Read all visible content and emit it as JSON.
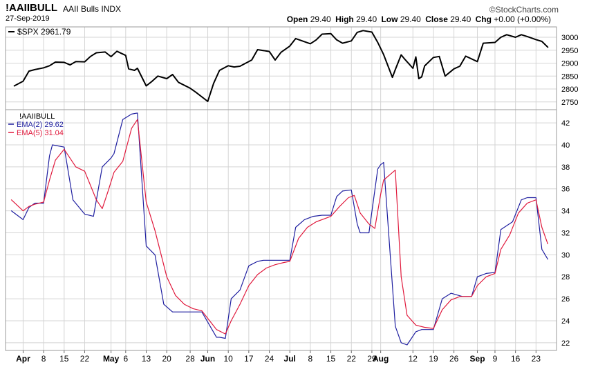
{
  "header": {
    "symbol": "!AAIIBULL",
    "name": "AAII Bulls INDX",
    "date": "27-Sep-2019",
    "brand": "StockCharts.com",
    "quote": [
      {
        "label": "Open",
        "value": "29.40"
      },
      {
        "label": "High",
        "value": "29.40"
      },
      {
        "label": "Low",
        "value": "29.40"
      },
      {
        "label": "Close",
        "value": "29.40"
      },
      {
        "label": "Chg",
        "value": "+0.00 (+0.00%)"
      }
    ]
  },
  "colors": {
    "spx": "#000000",
    "ema2": "#1f1fa0",
    "ema5": "#e0193c",
    "grid": "#d4d4d4",
    "border": "#9a9a9a"
  },
  "chart_data": [
    {
      "type": "line",
      "panel": "upper",
      "legend": [
        {
          "label": "$SPX",
          "value": "2961.79"
        }
      ],
      "ylim": [
        2720,
        3040
      ],
      "yticks": [
        2750,
        2800,
        2850,
        2900,
        2950,
        3000
      ],
      "grid": true,
      "series": [
        {
          "name": "$SPX",
          "x": [
            "2019-03-29",
            "2019-04-01",
            "2019-04-03",
            "2019-04-05",
            "2019-04-08",
            "2019-04-10",
            "2019-04-12",
            "2019-04-15",
            "2019-04-17",
            "2019-04-19",
            "2019-04-22",
            "2019-04-24",
            "2019-04-26",
            "2019-04-29",
            "2019-05-01",
            "2019-05-03",
            "2019-05-06",
            "2019-05-07",
            "2019-05-09",
            "2019-05-10",
            "2019-05-13",
            "2019-05-15",
            "2019-05-17",
            "2019-05-20",
            "2019-05-22",
            "2019-05-24",
            "2019-05-28",
            "2019-05-30",
            "2019-06-03",
            "2019-06-05",
            "2019-06-07",
            "2019-06-10",
            "2019-06-12",
            "2019-06-14",
            "2019-06-18",
            "2019-06-20",
            "2019-06-24",
            "2019-06-26",
            "2019-06-28",
            "2019-07-01",
            "2019-07-03",
            "2019-07-08",
            "2019-07-10",
            "2019-07-12",
            "2019-07-15",
            "2019-07-17",
            "2019-07-19",
            "2019-07-22",
            "2019-07-24",
            "2019-07-26",
            "2019-07-29",
            "2019-07-31",
            "2019-08-02",
            "2019-08-05",
            "2019-08-06",
            "2019-08-08",
            "2019-08-09",
            "2019-08-12",
            "2019-08-13",
            "2019-08-14",
            "2019-08-15",
            "2019-08-16",
            "2019-08-19",
            "2019-08-21",
            "2019-08-23",
            "2019-08-26",
            "2019-08-28",
            "2019-08-30",
            "2019-09-03",
            "2019-09-05",
            "2019-09-09",
            "2019-09-11",
            "2019-09-13",
            "2019-09-16",
            "2019-09-18",
            "2019-09-20",
            "2019-09-23",
            "2019-09-25",
            "2019-09-27"
          ],
          "values": [
            2812,
            2830,
            2869,
            2875,
            2882,
            2890,
            2904,
            2903,
            2893,
            2906,
            2905,
            2926,
            2940,
            2943,
            2925,
            2946,
            2930,
            2878,
            2872,
            2880,
            2812,
            2830,
            2850,
            2840,
            2856,
            2826,
            2803,
            2787,
            2752,
            2822,
            2872,
            2890,
            2885,
            2888,
            2912,
            2952,
            2945,
            2912,
            2942,
            2966,
            2995,
            2975,
            2990,
            3012,
            3014,
            2990,
            2977,
            2986,
            3019,
            3026,
            3020,
            2980,
            2933,
            2845,
            2875,
            2932,
            2918,
            2880,
            2924,
            2840,
            2847,
            2889,
            2922,
            2926,
            2850,
            2878,
            2888,
            2927,
            2906,
            2977,
            2980,
            3000,
            3010,
            3000,
            3010,
            3003,
            2991,
            2984,
            2962
          ]
        }
      ]
    },
    {
      "type": "line",
      "panel": "lower",
      "title": "!AAIIBULL",
      "legend": [
        {
          "label": "EMA(2)",
          "value": "29.62"
        },
        {
          "label": "EMA(5)",
          "value": "31.04"
        }
      ],
      "ylim": [
        21.3,
        43.2
      ],
      "yticks": [
        22,
        24,
        26,
        28,
        30,
        32,
        34,
        36,
        38,
        40,
        42
      ],
      "grid": true,
      "series": [
        {
          "name": "EMA(2)",
          "x": [
            "2019-03-28",
            "2019-04-01",
            "2019-04-03",
            "2019-04-05",
            "2019-04-08",
            "2019-04-10",
            "2019-04-11",
            "2019-04-15",
            "2019-04-18",
            "2019-04-22",
            "2019-04-25",
            "2019-04-28",
            "2019-05-01",
            "2019-05-02",
            "2019-05-05",
            "2019-05-08",
            "2019-05-10",
            "2019-05-13",
            "2019-05-16",
            "2019-05-19",
            "2019-05-22",
            "2019-05-25",
            "2019-05-27",
            "2019-06-01",
            "2019-06-06",
            "2019-06-07",
            "2019-06-09",
            "2019-06-11",
            "2019-06-14",
            "2019-06-17",
            "2019-06-20",
            "2019-06-22",
            "2019-06-25",
            "2019-06-28",
            "2019-07-01",
            "2019-07-03",
            "2019-07-06",
            "2019-07-09",
            "2019-07-12",
            "2019-07-15",
            "2019-07-17",
            "2019-07-19",
            "2019-07-22",
            "2019-07-24",
            "2019-07-25",
            "2019-07-28",
            "2019-07-31",
            "2019-08-01",
            "2019-08-02",
            "2019-08-06",
            "2019-08-08",
            "2019-08-10",
            "2019-08-13",
            "2019-08-15",
            "2019-08-19",
            "2019-08-22",
            "2019-08-25",
            "2019-08-29",
            "2019-09-01",
            "2019-09-03",
            "2019-09-06",
            "2019-09-09",
            "2019-09-11",
            "2019-09-15",
            "2019-09-18",
            "2019-09-20",
            "2019-09-23",
            "2019-09-25",
            "2019-09-27"
          ],
          "values": [
            34.0,
            33.2,
            34.3,
            34.7,
            34.7,
            39.0,
            40.0,
            39.8,
            35.0,
            33.7,
            33.5,
            38.0,
            38.8,
            39.2,
            42.3,
            42.8,
            42.9,
            30.8,
            30.0,
            25.5,
            24.8,
            24.8,
            24.8,
            24.8,
            22.5,
            22.5,
            22.4,
            26.0,
            26.8,
            29.0,
            29.4,
            29.5,
            29.5,
            29.5,
            29.5,
            32.5,
            33.2,
            33.5,
            33.6,
            33.6,
            35.3,
            35.8,
            35.9,
            32.8,
            32.0,
            32.0,
            37.8,
            38.2,
            38.4,
            23.5,
            22.0,
            21.8,
            23.0,
            23.2,
            23.2,
            26.0,
            26.5,
            26.2,
            26.2,
            28.0,
            28.3,
            28.4,
            32.3,
            33.0,
            35.0,
            35.2,
            35.2,
            30.5,
            29.6
          ]
        },
        {
          "name": "EMA(5)",
          "x": [
            "2019-03-28",
            "2019-04-01",
            "2019-04-03",
            "2019-04-05",
            "2019-04-08",
            "2019-04-10",
            "2019-04-12",
            "2019-04-15",
            "2019-04-19",
            "2019-04-22",
            "2019-04-26",
            "2019-04-28",
            "2019-04-30",
            "2019-05-02",
            "2019-05-05",
            "2019-05-08",
            "2019-05-10",
            "2019-05-13",
            "2019-05-16",
            "2019-05-20",
            "2019-05-23",
            "2019-05-26",
            "2019-05-29",
            "2019-06-01",
            "2019-06-06",
            "2019-06-09",
            "2019-06-11",
            "2019-06-14",
            "2019-06-17",
            "2019-06-20",
            "2019-06-23",
            "2019-06-26",
            "2019-06-29",
            "2019-07-01",
            "2019-07-04",
            "2019-07-07",
            "2019-07-10",
            "2019-07-13",
            "2019-07-15",
            "2019-07-18",
            "2019-07-21",
            "2019-07-23",
            "2019-07-25",
            "2019-07-28",
            "2019-07-30",
            "2019-08-01",
            "2019-08-02",
            "2019-08-06",
            "2019-08-08",
            "2019-08-10",
            "2019-08-13",
            "2019-08-16",
            "2019-08-19",
            "2019-08-22",
            "2019-08-25",
            "2019-08-28",
            "2019-09-01",
            "2019-09-03",
            "2019-09-06",
            "2019-09-09",
            "2019-09-11",
            "2019-09-14",
            "2019-09-17",
            "2019-09-20",
            "2019-09-23",
            "2019-09-25",
            "2019-09-27"
          ],
          "values": [
            35.0,
            34.0,
            34.4,
            34.6,
            34.8,
            36.8,
            38.6,
            39.6,
            38.0,
            37.6,
            35.0,
            34.2,
            35.8,
            37.5,
            38.5,
            41.5,
            42.3,
            34.8,
            32.2,
            28.0,
            26.3,
            25.5,
            25.1,
            24.9,
            23.2,
            22.8,
            24.0,
            25.5,
            27.2,
            28.2,
            28.8,
            29.1,
            29.3,
            29.4,
            31.5,
            32.5,
            33.0,
            33.3,
            33.5,
            34.4,
            35.2,
            35.4,
            33.8,
            32.8,
            32.4,
            35.5,
            36.8,
            37.7,
            28.0,
            24.5,
            23.6,
            23.4,
            23.3,
            25.0,
            25.9,
            26.2,
            26.2,
            27.2,
            28.0,
            28.3,
            30.5,
            31.8,
            33.8,
            34.7,
            35.0,
            32.5,
            31.0
          ]
        }
      ]
    }
  ],
  "xaxis": {
    "ticks": [
      {
        "date": "2019-04-01",
        "label": "Apr",
        "bold": true
      },
      {
        "date": "2019-04-08",
        "label": "8",
        "bold": false
      },
      {
        "date": "2019-04-15",
        "label": "15",
        "bold": false
      },
      {
        "date": "2019-04-22",
        "label": "22",
        "bold": false
      },
      {
        "date": "2019-05-01",
        "label": "May",
        "bold": true
      },
      {
        "date": "2019-05-06",
        "label": "6",
        "bold": false
      },
      {
        "date": "2019-05-13",
        "label": "13",
        "bold": false
      },
      {
        "date": "2019-05-20",
        "label": "20",
        "bold": false
      },
      {
        "date": "2019-05-28",
        "label": "28",
        "bold": false
      },
      {
        "date": "2019-06-03",
        "label": "Jun",
        "bold": true
      },
      {
        "date": "2019-06-10",
        "label": "10",
        "bold": false
      },
      {
        "date": "2019-06-17",
        "label": "17",
        "bold": false
      },
      {
        "date": "2019-06-24",
        "label": "24",
        "bold": false
      },
      {
        "date": "2019-07-01",
        "label": "Jul",
        "bold": true
      },
      {
        "date": "2019-07-08",
        "label": "8",
        "bold": false
      },
      {
        "date": "2019-07-15",
        "label": "15",
        "bold": false
      },
      {
        "date": "2019-07-22",
        "label": "22",
        "bold": false
      },
      {
        "date": "2019-07-29",
        "label": "29",
        "bold": false
      },
      {
        "date": "2019-08-01",
        "label": "Aug",
        "bold": true
      },
      {
        "date": "2019-08-12",
        "label": "12",
        "bold": false
      },
      {
        "date": "2019-08-19",
        "label": "19",
        "bold": false
      },
      {
        "date": "2019-08-26",
        "label": "26",
        "bold": false
      },
      {
        "date": "2019-09-03",
        "label": "Sep",
        "bold": true
      },
      {
        "date": "2019-09-09",
        "label": "9",
        "bold": false
      },
      {
        "date": "2019-09-16",
        "label": "16",
        "bold": false
      },
      {
        "date": "2019-09-23",
        "label": "23",
        "bold": false
      }
    ]
  }
}
